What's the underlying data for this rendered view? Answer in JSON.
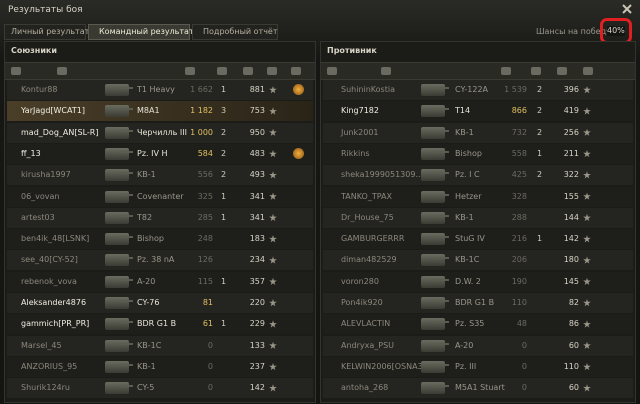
{
  "header": {
    "title": "Результаты боя",
    "tabs": [
      "Личный результат",
      "Командный результат",
      "Подробный отчёт"
    ],
    "win_chance_label": "Шансы на победу:",
    "win_chance": "40%"
  },
  "allies": {
    "title": "Союзники",
    "rows": [
      [
        "Kontur88",
        "T1 Heavy",
        "1 662",
        "1",
        "881"
      ],
      [
        "YarJagd[WCAT1]",
        "M8A1",
        "1 182",
        "3",
        "753"
      ],
      [
        "mad_Dog_AN[SL-R]",
        "Черчилль III",
        "1 000",
        "2",
        "950"
      ],
      [
        "ff_13",
        "Pz. IV H",
        "584",
        "2",
        "483"
      ],
      [
        "kirusha1997",
        "KB-1",
        "556",
        "2",
        "493"
      ],
      [
        "06_vovan",
        "Covenanter",
        "325",
        "1",
        "341"
      ],
      [
        "artest03",
        "T82",
        "285",
        "1",
        "341"
      ],
      [
        "ben4ik_48[LSNK]",
        "Bishop",
        "248",
        null,
        "183"
      ],
      [
        "see_40[CY-52]",
        "Pz. 38 nA",
        "126",
        null,
        "234"
      ],
      [
        "rebenok_vova",
        "A-20",
        "115",
        "1",
        "357"
      ],
      [
        "Aleksander4876",
        "CY-76",
        "81",
        null,
        "220"
      ],
      [
        "gammich[PR_PR]",
        "BDR G1 B",
        "61",
        "1",
        "229"
      ],
      [
        "Marsel_45",
        "KB-1C",
        "0",
        null,
        "133"
      ],
      [
        "ANZORIUS_95",
        "KB-1",
        "0",
        null,
        "237"
      ],
      [
        "Shurik124ru",
        "CY-5",
        "0",
        null,
        "142"
      ]
    ]
  },
  "enemies": {
    "title": "Противник",
    "rows": [
      [
        "SuhininKostia",
        "CY-122A",
        "1 539",
        "2",
        "396"
      ],
      [
        "King7182",
        "T14",
        "866",
        "2",
        "419"
      ],
      [
        "Junk2001",
        "KB-1",
        "732",
        "2",
        "256"
      ],
      [
        "Rikkins",
        "Bishop",
        "558",
        "1",
        "211"
      ],
      [
        "sheka1999051309...",
        "Pz. I C",
        "425",
        "2",
        "322"
      ],
      [
        "TANKO_TPAX",
        "Hetzer",
        "328",
        null,
        "155"
      ],
      [
        "Dr_House_75",
        "KB-1",
        "288",
        null,
        "144"
      ],
      [
        "GAMBURGERRR",
        "StuG IV",
        "216",
        "1",
        "142"
      ],
      [
        "diman482529",
        "KB-1C",
        "206",
        null,
        "180"
      ],
      [
        "voron280",
        "D.W. 2",
        "190",
        null,
        "145"
      ],
      [
        "Pon4ik920",
        "BDR G1 B",
        "110",
        null,
        "82"
      ],
      [
        "ALEVLACTIN",
        "Pz. S35",
        "48",
        null,
        "86"
      ],
      [
        "Andryxa_PSU",
        "A-20",
        "0",
        null,
        "60"
      ],
      [
        "KELWIN2006[OSNA3]",
        "Pz. III",
        "0",
        null,
        "110"
      ],
      [
        "antoha_268",
        "M5A1 Stuart",
        "0",
        null,
        "60"
      ]
    ]
  }
}
